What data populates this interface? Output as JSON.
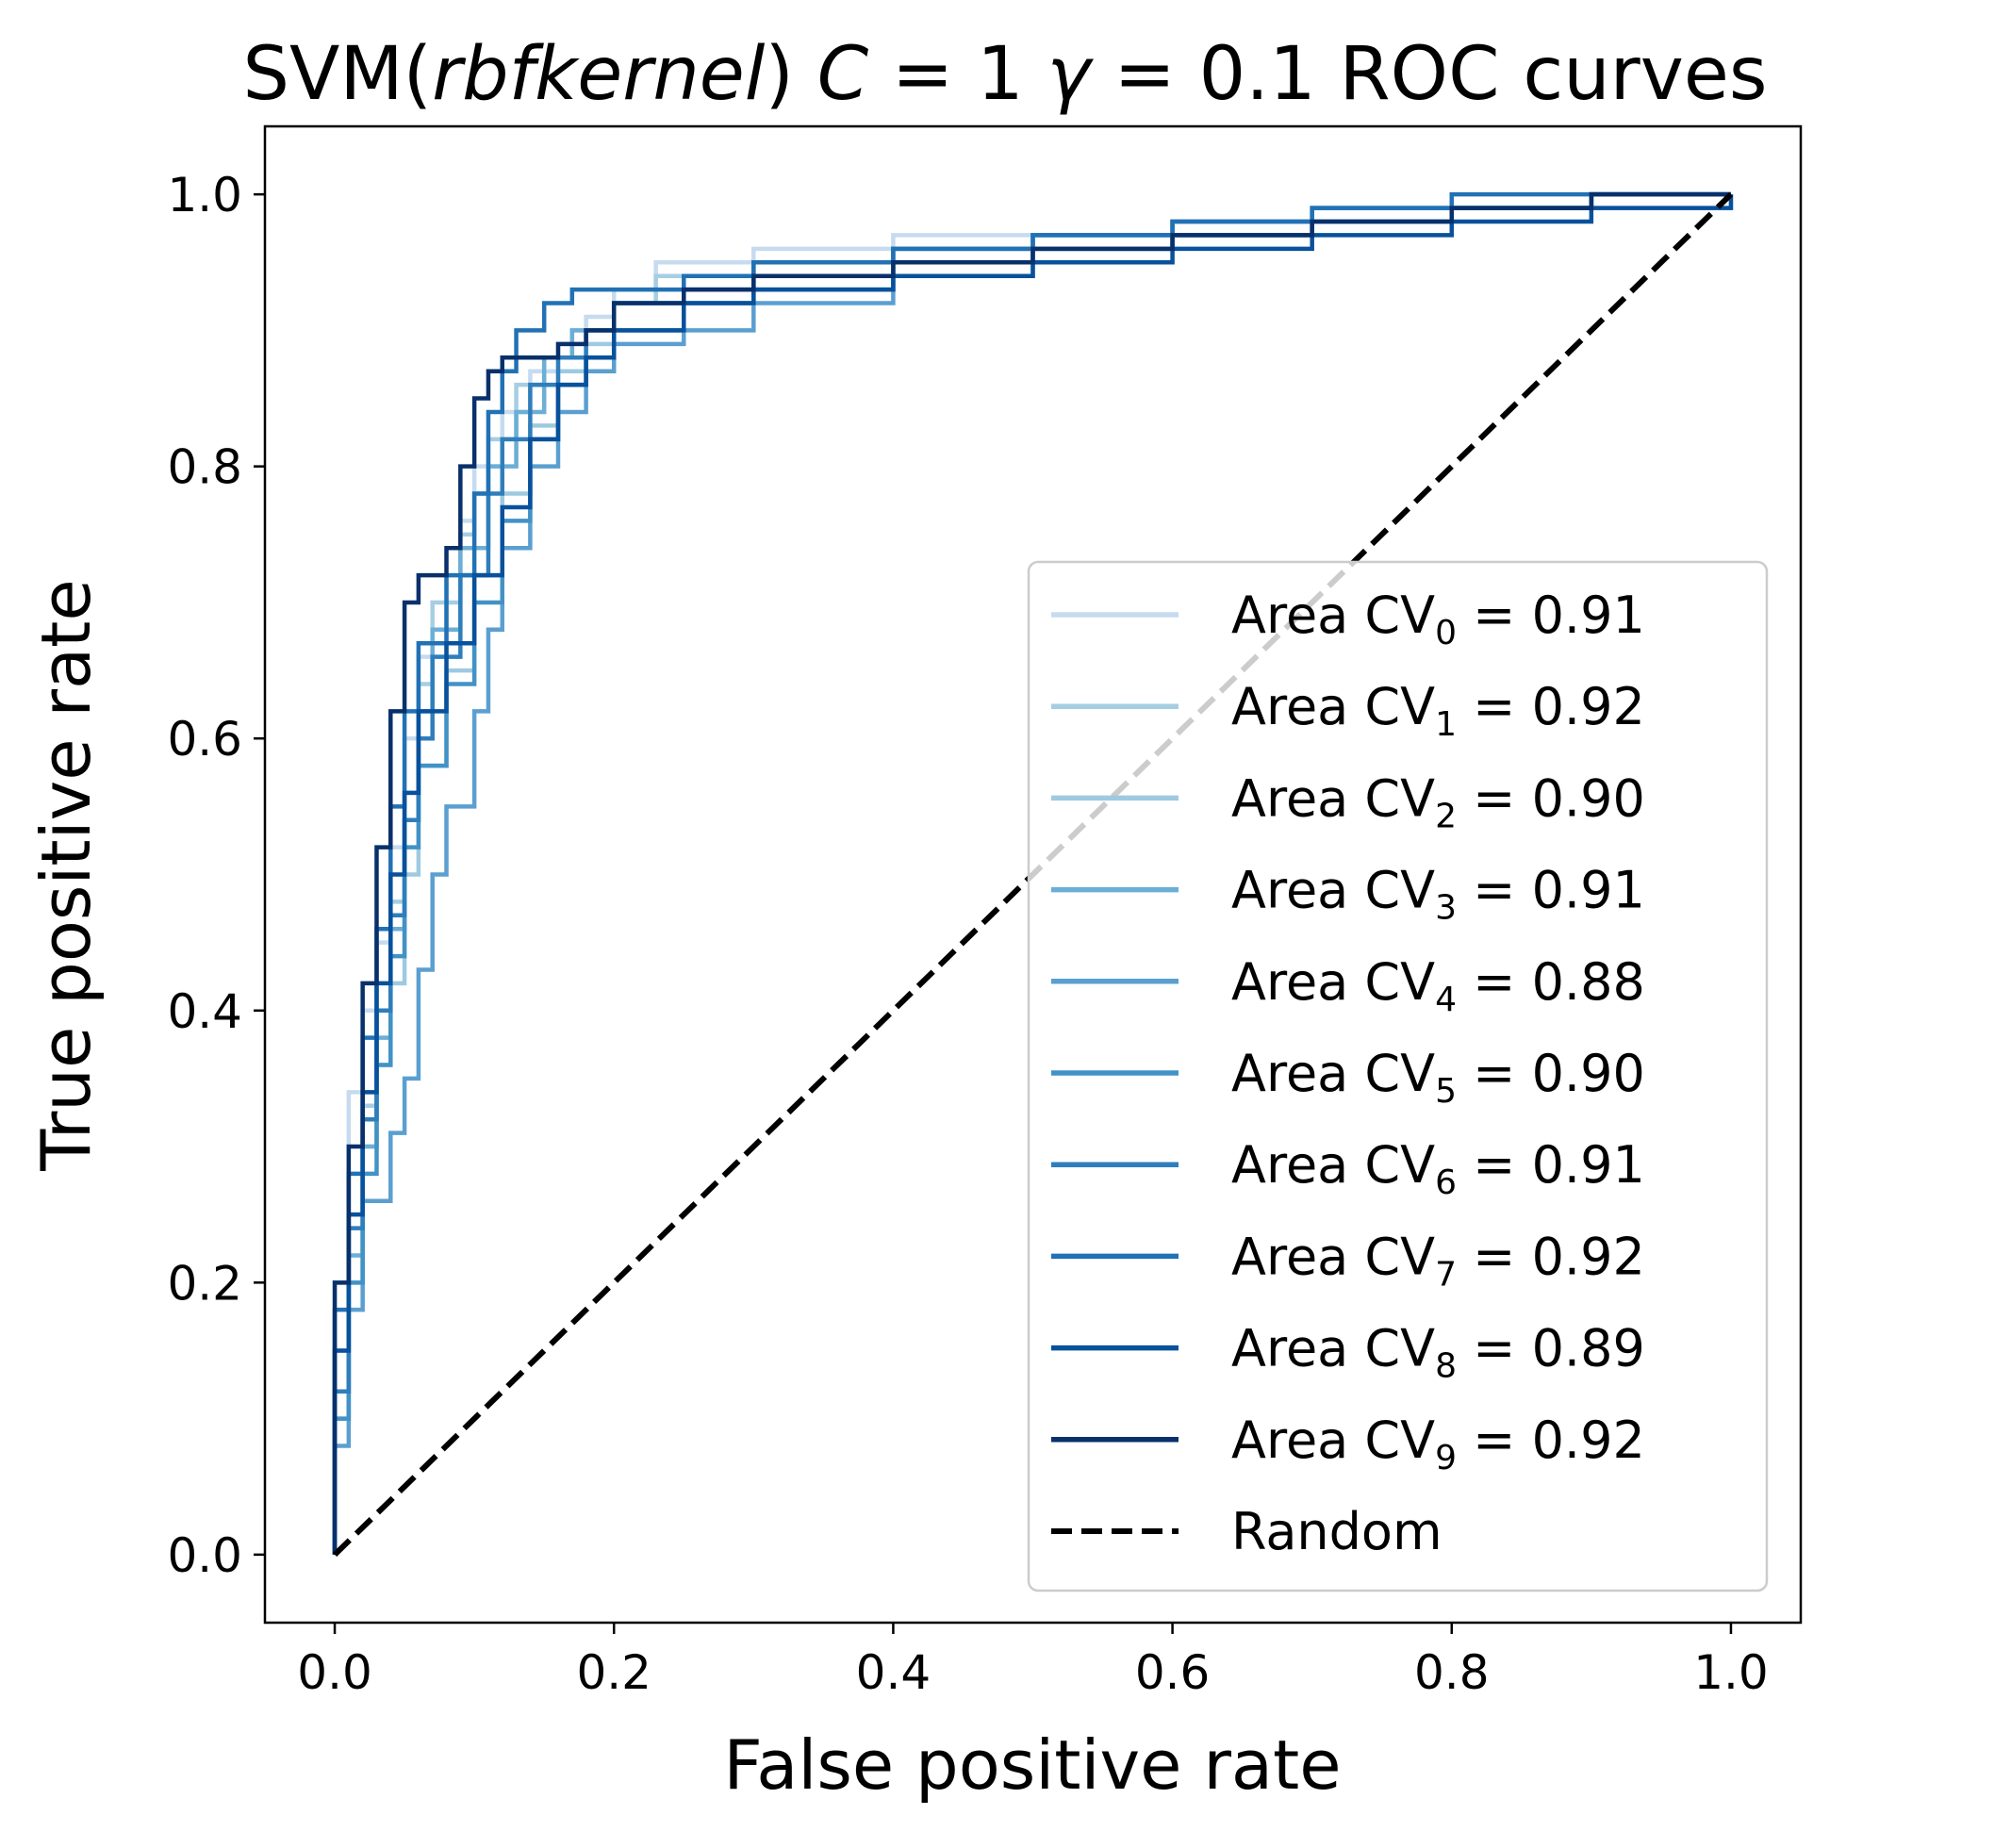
{
  "chart_data": {
    "type": "line",
    "title": {
      "prefix": "SVM(",
      "kernel_italic": "rbfkernel",
      "mid": ") ",
      "c_italic": "C",
      "c_value": " = 1 ",
      "gamma_italic": "γ",
      "gamma_value": " = 0.1 ROC curves"
    },
    "xlabel": "False positive rate",
    "ylabel": "True positive rate",
    "xlim": [
      -0.05,
      1.05
    ],
    "ylim": [
      -0.05,
      1.05
    ],
    "xticks": [
      "0.0",
      "0.2",
      "0.4",
      "0.6",
      "0.8",
      "1.0"
    ],
    "yticks": [
      "0.0",
      "0.2",
      "0.4",
      "0.6",
      "0.8",
      "1.0"
    ],
    "grid": false,
    "legend_position": "lower-right",
    "series": [
      {
        "name_prefix": "Area CV",
        "name_sub": "0",
        "name_suffix": " = 0.91",
        "color": "#c6dbef",
        "x": [
          0,
          0,
          0.01,
          0.01,
          0.02,
          0.03,
          0.04,
          0.05,
          0.06,
          0.08,
          0.09,
          0.1,
          0.12,
          0.14,
          0.16,
          0.18,
          0.2,
          0.23,
          0.3,
          0.4,
          0.5,
          0.6,
          0.7,
          0.8,
          0.9,
          1.0
        ],
        "y": [
          0,
          0.2,
          0.28,
          0.34,
          0.4,
          0.45,
          0.52,
          0.6,
          0.66,
          0.72,
          0.76,
          0.8,
          0.84,
          0.87,
          0.89,
          0.91,
          0.93,
          0.95,
          0.96,
          0.97,
          0.97,
          0.98,
          0.99,
          0.99,
          1.0,
          1.0
        ]
      },
      {
        "name_prefix": "Area CV",
        "name_sub": "1",
        "name_suffix": " = 0.92",
        "color": "#a6cee3",
        "x": [
          0,
          0,
          0.01,
          0.02,
          0.03,
          0.04,
          0.05,
          0.06,
          0.07,
          0.09,
          0.1,
          0.11,
          0.13,
          0.15,
          0.17,
          0.2,
          0.23,
          0.3,
          0.4,
          0.5,
          0.6,
          0.7,
          0.8,
          0.9,
          1.0
        ],
        "y": [
          0,
          0.15,
          0.25,
          0.33,
          0.4,
          0.48,
          0.56,
          0.64,
          0.7,
          0.75,
          0.78,
          0.82,
          0.86,
          0.88,
          0.9,
          0.92,
          0.94,
          0.95,
          0.96,
          0.97,
          0.98,
          0.98,
          0.99,
          1.0,
          1.0
        ]
      },
      {
        "name_prefix": "Area CV",
        "name_sub": "2",
        "name_suffix": " = 0.90",
        "color": "#9ecae1",
        "x": [
          0,
          0,
          0.01,
          0.02,
          0.03,
          0.04,
          0.05,
          0.06,
          0.08,
          0.1,
          0.12,
          0.14,
          0.16,
          0.18,
          0.2,
          0.25,
          0.3,
          0.4,
          0.5,
          0.6,
          0.7,
          0.8,
          0.9,
          1.0
        ],
        "y": [
          0,
          0.1,
          0.2,
          0.3,
          0.36,
          0.42,
          0.5,
          0.58,
          0.65,
          0.72,
          0.78,
          0.83,
          0.87,
          0.89,
          0.9,
          0.92,
          0.93,
          0.95,
          0.96,
          0.97,
          0.98,
          0.99,
          0.99,
          1.0
        ]
      },
      {
        "name_prefix": "Area CV",
        "name_sub": "3",
        "name_suffix": " = 0.91",
        "color": "#6baed6",
        "x": [
          0,
          0,
          0.01,
          0.02,
          0.03,
          0.04,
          0.05,
          0.06,
          0.07,
          0.09,
          0.11,
          0.13,
          0.15,
          0.17,
          0.2,
          0.25,
          0.3,
          0.4,
          0.5,
          0.6,
          0.7,
          0.8,
          0.9,
          1.0
        ],
        "y": [
          0,
          0.12,
          0.22,
          0.3,
          0.38,
          0.46,
          0.54,
          0.62,
          0.68,
          0.74,
          0.8,
          0.84,
          0.88,
          0.9,
          0.92,
          0.93,
          0.94,
          0.95,
          0.96,
          0.97,
          0.98,
          0.99,
          1.0,
          1.0
        ]
      },
      {
        "name_prefix": "Area CV",
        "name_sub": "4",
        "name_suffix": " = 0.88",
        "color": "#5b9fd1",
        "x": [
          0,
          0,
          0.01,
          0.02,
          0.04,
          0.05,
          0.06,
          0.07,
          0.08,
          0.1,
          0.11,
          0.12,
          0.14,
          0.16,
          0.18,
          0.2,
          0.25,
          0.3,
          0.4,
          0.5,
          0.6,
          0.7,
          0.8,
          0.9,
          1.0
        ],
        "y": [
          0,
          0.08,
          0.18,
          0.26,
          0.31,
          0.35,
          0.43,
          0.5,
          0.55,
          0.62,
          0.68,
          0.74,
          0.8,
          0.84,
          0.87,
          0.89,
          0.9,
          0.92,
          0.94,
          0.96,
          0.97,
          0.98,
          0.99,
          1.0,
          1.0
        ]
      },
      {
        "name_prefix": "Area CV",
        "name_sub": "5",
        "name_suffix": " = 0.90",
        "color": "#4292c6",
        "x": [
          0,
          0,
          0.01,
          0.02,
          0.03,
          0.04,
          0.05,
          0.06,
          0.08,
          0.1,
          0.12,
          0.14,
          0.16,
          0.18,
          0.2,
          0.25,
          0.3,
          0.4,
          0.5,
          0.6,
          0.7,
          0.8,
          0.9,
          1.0
        ],
        "y": [
          0,
          0.1,
          0.2,
          0.28,
          0.36,
          0.44,
          0.52,
          0.58,
          0.64,
          0.7,
          0.76,
          0.82,
          0.86,
          0.88,
          0.9,
          0.92,
          0.93,
          0.95,
          0.96,
          0.97,
          0.98,
          0.99,
          1.0,
          1.0
        ]
      },
      {
        "name_prefix": "Area CV",
        "name_sub": "6",
        "name_suffix": " = 0.91",
        "color": "#2f7ebc",
        "x": [
          0,
          0,
          0.01,
          0.02,
          0.03,
          0.04,
          0.05,
          0.06,
          0.07,
          0.09,
          0.11,
          0.12,
          0.14,
          0.16,
          0.18,
          0.2,
          0.25,
          0.3,
          0.4,
          0.5,
          0.6,
          0.7,
          0.8,
          0.9,
          1.0
        ],
        "y": [
          0,
          0.12,
          0.24,
          0.32,
          0.4,
          0.47,
          0.54,
          0.6,
          0.66,
          0.72,
          0.78,
          0.82,
          0.86,
          0.88,
          0.9,
          0.92,
          0.93,
          0.95,
          0.96,
          0.97,
          0.98,
          0.99,
          0.99,
          1.0,
          1.0
        ]
      },
      {
        "name_prefix": "Area CV",
        "name_sub": "7",
        "name_suffix": " = 0.92",
        "color": "#2171b5",
        "x": [
          0,
          0,
          0.01,
          0.02,
          0.03,
          0.04,
          0.05,
          0.06,
          0.08,
          0.1,
          0.11,
          0.12,
          0.13,
          0.15,
          0.17,
          0.2,
          0.25,
          0.3,
          0.4,
          0.5,
          0.6,
          0.7,
          0.8,
          0.9,
          1.0
        ],
        "y": [
          0,
          0.18,
          0.28,
          0.38,
          0.46,
          0.55,
          0.62,
          0.67,
          0.72,
          0.78,
          0.84,
          0.87,
          0.9,
          0.92,
          0.93,
          0.93,
          0.94,
          0.95,
          0.96,
          0.97,
          0.98,
          0.99,
          1.0,
          1.0,
          1.0
        ]
      },
      {
        "name_prefix": "Area CV",
        "name_sub": "8",
        "name_suffix": " = 0.89",
        "color": "#08519c",
        "x": [
          0,
          0,
          0.01,
          0.02,
          0.03,
          0.04,
          0.05,
          0.06,
          0.08,
          0.1,
          0.12,
          0.14,
          0.16,
          0.18,
          0.2,
          0.25,
          0.3,
          0.4,
          0.5,
          0.6,
          0.7,
          0.8,
          0.9,
          1.0
        ],
        "y": [
          0,
          0.15,
          0.25,
          0.34,
          0.42,
          0.5,
          0.56,
          0.62,
          0.67,
          0.72,
          0.77,
          0.82,
          0.86,
          0.88,
          0.9,
          0.92,
          0.93,
          0.94,
          0.95,
          0.96,
          0.97,
          0.98,
          0.99,
          1.0
        ]
      },
      {
        "name_prefix": "Area CV",
        "name_sub": "9",
        "name_suffix": " = 0.92",
        "color": "#08306b",
        "x": [
          0,
          0,
          0.01,
          0.02,
          0.03,
          0.04,
          0.05,
          0.06,
          0.08,
          0.09,
          0.1,
          0.11,
          0.12,
          0.14,
          0.16,
          0.18,
          0.2,
          0.25,
          0.3,
          0.4,
          0.5,
          0.6,
          0.7,
          0.8,
          0.9,
          1.0
        ],
        "y": [
          0,
          0.2,
          0.3,
          0.42,
          0.52,
          0.62,
          0.7,
          0.72,
          0.74,
          0.8,
          0.85,
          0.87,
          0.88,
          0.88,
          0.89,
          0.9,
          0.92,
          0.93,
          0.94,
          0.95,
          0.96,
          0.97,
          0.98,
          0.99,
          1.0,
          1.0
        ]
      },
      {
        "name_prefix": "Random",
        "name_sub": "",
        "name_suffix": "",
        "color": "#000000",
        "dashed": true,
        "x": [
          0,
          1
        ],
        "y": [
          0,
          1
        ]
      }
    ]
  }
}
